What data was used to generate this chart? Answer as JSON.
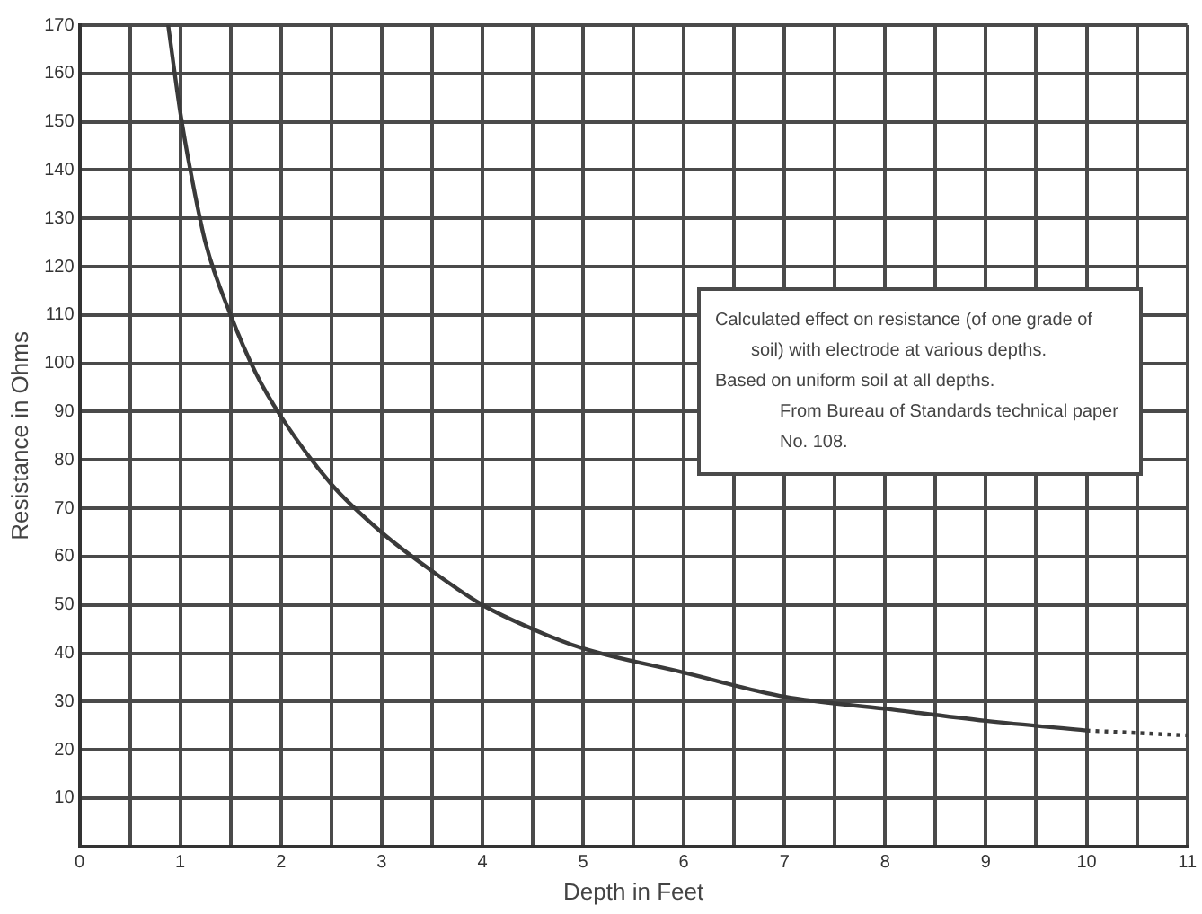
{
  "chart_data": {
    "type": "line",
    "xlabel": "Depth in Feet",
    "ylabel": "Resistance in Ohms",
    "xlim": [
      0,
      11
    ],
    "ylim": [
      0,
      170
    ],
    "xticks": [
      0,
      {
        "value": 0.5,
        "label": null
      },
      1,
      {
        "value": 1.5,
        "label": null
      },
      2,
      {
        "value": 2.5,
        "label": null
      },
      3,
      {
        "value": 3.5,
        "label": null
      },
      4,
      {
        "value": 4.5,
        "label": null
      },
      5,
      {
        "value": 5.5,
        "label": null
      },
      6,
      {
        "value": 6.5,
        "label": null
      },
      7,
      {
        "value": 7.5,
        "label": null
      },
      8,
      {
        "value": 8.5,
        "label": null
      },
      9,
      {
        "value": 9.5,
        "label": null
      },
      10,
      {
        "value": 10.5,
        "label": null
      },
      11
    ],
    "yticks": [
      10,
      20,
      30,
      40,
      50,
      60,
      70,
      80,
      90,
      100,
      110,
      120,
      130,
      140,
      150,
      160,
      170
    ],
    "grid": true,
    "marker": "none",
    "series": [
      {
        "color": "#3a3a3a",
        "line_style": "solid",
        "x": [
          0.88,
          1,
          1.1,
          1.25,
          1.5,
          1.75,
          2,
          2.5,
          3,
          3.5,
          4,
          4.5,
          5,
          6,
          7,
          8,
          9,
          10
        ],
        "values": [
          170,
          152,
          140,
          125,
          110,
          98,
          89,
          75,
          65,
          57,
          50,
          45,
          41,
          36,
          31,
          28.5,
          26,
          24
        ]
      },
      {
        "color": "#3a3a3a",
        "line_style": "dotted",
        "x": [
          10,
          11
        ],
        "values": [
          24,
          23
        ]
      }
    ],
    "annotations": [
      "Calculated effect on resistance (of one grade of soil) with electrode at various depths.",
      "Based on uniform soil at all depths.",
      "From Bureau of Standards technical paper No. 108."
    ]
  }
}
